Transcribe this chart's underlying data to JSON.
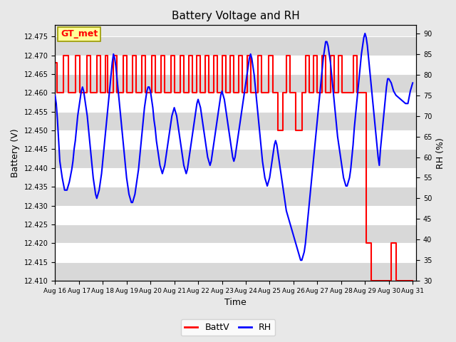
{
  "title": "Battery Voltage and RH",
  "xlabel": "Time",
  "ylabel_left": "Battery (V)",
  "ylabel_right": "RH (%)",
  "annotation": "GT_met",
  "ylim_left": [
    12.41,
    12.478
  ],
  "ylim_right": [
    30,
    92
  ],
  "yticks_left": [
    12.41,
    12.415,
    12.42,
    12.425,
    12.43,
    12.435,
    12.44,
    12.445,
    12.45,
    12.455,
    12.46,
    12.465,
    12.47,
    12.475
  ],
  "yticks_right": [
    30,
    35,
    40,
    45,
    50,
    55,
    60,
    65,
    70,
    75,
    80,
    85,
    90
  ],
  "bg_color": "#e8e8e8",
  "fig_color": "#e8e8e8",
  "batt_color": "red",
  "rh_color": "blue",
  "annotation_bg": "#ffff99",
  "annotation_border": "#999900",
  "batt_data": [
    [
      16.0,
      12.468
    ],
    [
      16.08,
      12.468
    ],
    [
      16.08,
      12.46
    ],
    [
      16.35,
      12.46
    ],
    [
      16.35,
      12.47
    ],
    [
      16.55,
      12.47
    ],
    [
      16.55,
      12.46
    ],
    [
      16.85,
      12.46
    ],
    [
      16.85,
      12.47
    ],
    [
      17.05,
      12.47
    ],
    [
      17.05,
      12.46
    ],
    [
      17.35,
      12.46
    ],
    [
      17.35,
      12.47
    ],
    [
      17.5,
      12.47
    ],
    [
      17.5,
      12.46
    ],
    [
      17.75,
      12.46
    ],
    [
      17.75,
      12.47
    ],
    [
      17.9,
      12.47
    ],
    [
      17.9,
      12.46
    ],
    [
      18.1,
      12.46
    ],
    [
      18.1,
      12.47
    ],
    [
      18.2,
      12.47
    ],
    [
      18.2,
      12.46
    ],
    [
      18.45,
      12.46
    ],
    [
      18.45,
      12.47
    ],
    [
      18.6,
      12.47
    ],
    [
      18.6,
      12.46
    ],
    [
      18.85,
      12.46
    ],
    [
      18.85,
      12.47
    ],
    [
      19.0,
      12.47
    ],
    [
      19.0,
      12.46
    ],
    [
      19.25,
      12.46
    ],
    [
      19.25,
      12.47
    ],
    [
      19.4,
      12.47
    ],
    [
      19.4,
      12.46
    ],
    [
      19.65,
      12.46
    ],
    [
      19.65,
      12.47
    ],
    [
      19.8,
      12.47
    ],
    [
      19.8,
      12.46
    ],
    [
      20.05,
      12.46
    ],
    [
      20.05,
      12.47
    ],
    [
      20.2,
      12.47
    ],
    [
      20.2,
      12.46
    ],
    [
      20.45,
      12.46
    ],
    [
      20.45,
      12.47
    ],
    [
      20.6,
      12.47
    ],
    [
      20.6,
      12.46
    ],
    [
      20.85,
      12.46
    ],
    [
      20.85,
      12.47
    ],
    [
      21.0,
      12.47
    ],
    [
      21.0,
      12.46
    ],
    [
      21.25,
      12.46
    ],
    [
      21.25,
      12.47
    ],
    [
      21.4,
      12.47
    ],
    [
      21.4,
      12.46
    ],
    [
      21.6,
      12.46
    ],
    [
      21.6,
      12.47
    ],
    [
      21.75,
      12.47
    ],
    [
      21.75,
      12.46
    ],
    [
      21.95,
      12.46
    ],
    [
      21.95,
      12.47
    ],
    [
      22.1,
      12.47
    ],
    [
      22.1,
      12.46
    ],
    [
      22.3,
      12.46
    ],
    [
      22.3,
      12.47
    ],
    [
      22.45,
      12.47
    ],
    [
      22.45,
      12.46
    ],
    [
      22.65,
      12.46
    ],
    [
      22.65,
      12.47
    ],
    [
      22.8,
      12.47
    ],
    [
      22.8,
      12.46
    ],
    [
      23.0,
      12.46
    ],
    [
      23.0,
      12.47
    ],
    [
      23.15,
      12.47
    ],
    [
      23.15,
      12.46
    ],
    [
      23.35,
      12.46
    ],
    [
      23.35,
      12.47
    ],
    [
      23.5,
      12.47
    ],
    [
      23.5,
      12.46
    ],
    [
      23.7,
      12.46
    ],
    [
      23.7,
      12.47
    ],
    [
      23.85,
      12.47
    ],
    [
      23.85,
      12.46
    ],
    [
      24.05,
      12.46
    ],
    [
      24.05,
      12.47
    ],
    [
      24.2,
      12.47
    ],
    [
      24.2,
      12.46
    ],
    [
      24.5,
      12.46
    ],
    [
      24.5,
      12.47
    ],
    [
      24.65,
      12.47
    ],
    [
      24.65,
      12.46
    ],
    [
      24.95,
      12.46
    ],
    [
      24.95,
      12.47
    ],
    [
      25.15,
      12.47
    ],
    [
      25.15,
      12.46
    ],
    [
      25.35,
      12.46
    ],
    [
      25.35,
      12.45
    ],
    [
      25.55,
      12.45
    ],
    [
      25.55,
      12.46
    ],
    [
      25.7,
      12.46
    ],
    [
      25.7,
      12.47
    ],
    [
      25.85,
      12.47
    ],
    [
      25.85,
      12.46
    ],
    [
      26.1,
      12.46
    ],
    [
      26.1,
      12.45
    ],
    [
      26.35,
      12.45
    ],
    [
      26.35,
      12.46
    ],
    [
      26.5,
      12.46
    ],
    [
      26.5,
      12.47
    ],
    [
      26.65,
      12.47
    ],
    [
      26.65,
      12.46
    ],
    [
      26.85,
      12.46
    ],
    [
      26.85,
      12.47
    ],
    [
      27.0,
      12.47
    ],
    [
      27.0,
      12.46
    ],
    [
      27.2,
      12.46
    ],
    [
      27.2,
      12.47
    ],
    [
      27.35,
      12.47
    ],
    [
      27.35,
      12.46
    ],
    [
      27.55,
      12.46
    ],
    [
      27.55,
      12.47
    ],
    [
      27.7,
      12.47
    ],
    [
      27.7,
      12.46
    ],
    [
      27.9,
      12.46
    ],
    [
      27.9,
      12.47
    ],
    [
      28.05,
      12.47
    ],
    [
      28.05,
      12.46
    ],
    [
      28.25,
      12.46
    ],
    [
      28.25,
      12.46
    ],
    [
      28.5,
      12.46
    ],
    [
      28.5,
      12.47
    ],
    [
      28.65,
      12.47
    ],
    [
      28.65,
      12.46
    ],
    [
      28.8,
      12.46
    ],
    [
      28.8,
      12.46
    ],
    [
      29.0,
      12.46
    ],
    [
      29.0,
      12.46
    ],
    [
      29.05,
      12.46
    ],
    [
      29.05,
      12.42
    ],
    [
      29.25,
      12.42
    ],
    [
      29.25,
      12.41
    ],
    [
      30.1,
      12.41
    ],
    [
      30.1,
      12.42
    ],
    [
      30.3,
      12.42
    ],
    [
      30.3,
      12.41
    ],
    [
      31.0,
      12.41
    ]
  ],
  "rh_data": [
    [
      16.0,
      75
    ],
    [
      16.05,
      73
    ],
    [
      16.1,
      69
    ],
    [
      16.15,
      64
    ],
    [
      16.2,
      59
    ],
    [
      16.3,
      55
    ],
    [
      16.4,
      52
    ],
    [
      16.5,
      52
    ],
    [
      16.6,
      54
    ],
    [
      16.7,
      57
    ],
    [
      16.75,
      59
    ],
    [
      16.8,
      62
    ],
    [
      16.85,
      64
    ],
    [
      16.9,
      67
    ],
    [
      16.95,
      70
    ],
    [
      17.0,
      72
    ],
    [
      17.05,
      74
    ],
    [
      17.1,
      76
    ],
    [
      17.15,
      77
    ],
    [
      17.2,
      76
    ],
    [
      17.25,
      74
    ],
    [
      17.3,
      72
    ],
    [
      17.35,
      70
    ],
    [
      17.4,
      67
    ],
    [
      17.45,
      64
    ],
    [
      17.5,
      61
    ],
    [
      17.55,
      58
    ],
    [
      17.6,
      55
    ],
    [
      17.65,
      53
    ],
    [
      17.7,
      51
    ],
    [
      17.75,
      50
    ],
    [
      17.8,
      51
    ],
    [
      17.85,
      52
    ],
    [
      17.9,
      54
    ],
    [
      17.95,
      56
    ],
    [
      18.0,
      59
    ],
    [
      18.05,
      62
    ],
    [
      18.1,
      65
    ],
    [
      18.15,
      68
    ],
    [
      18.2,
      71
    ],
    [
      18.25,
      74
    ],
    [
      18.3,
      77
    ],
    [
      18.35,
      80
    ],
    [
      18.4,
      83
    ],
    [
      18.45,
      85
    ],
    [
      18.5,
      84
    ],
    [
      18.55,
      82
    ],
    [
      18.6,
      79
    ],
    [
      18.65,
      76
    ],
    [
      18.7,
      73
    ],
    [
      18.75,
      70
    ],
    [
      18.8,
      67
    ],
    [
      18.85,
      64
    ],
    [
      18.9,
      61
    ],
    [
      18.95,
      58
    ],
    [
      19.0,
      55
    ],
    [
      19.05,
      53
    ],
    [
      19.1,
      51
    ],
    [
      19.15,
      50
    ],
    [
      19.2,
      49
    ],
    [
      19.25,
      49
    ],
    [
      19.3,
      50
    ],
    [
      19.35,
      51
    ],
    [
      19.4,
      53
    ],
    [
      19.45,
      55
    ],
    [
      19.5,
      57
    ],
    [
      19.55,
      60
    ],
    [
      19.6,
      63
    ],
    [
      19.65,
      66
    ],
    [
      19.7,
      69
    ],
    [
      19.75,
      72
    ],
    [
      19.8,
      74
    ],
    [
      19.85,
      76
    ],
    [
      19.9,
      77
    ],
    [
      19.95,
      77
    ],
    [
      20.0,
      76
    ],
    [
      20.05,
      74
    ],
    [
      20.1,
      72
    ],
    [
      20.15,
      69
    ],
    [
      20.2,
      67
    ],
    [
      20.25,
      64
    ],
    [
      20.3,
      62
    ],
    [
      20.35,
      60
    ],
    [
      20.4,
      58
    ],
    [
      20.45,
      57
    ],
    [
      20.5,
      56
    ],
    [
      20.55,
      57
    ],
    [
      20.6,
      58
    ],
    [
      20.65,
      60
    ],
    [
      20.7,
      62
    ],
    [
      20.75,
      64
    ],
    [
      20.8,
      66
    ],
    [
      20.85,
      68
    ],
    [
      20.9,
      70
    ],
    [
      20.95,
      71
    ],
    [
      21.0,
      72
    ],
    [
      21.05,
      71
    ],
    [
      21.1,
      70
    ],
    [
      21.15,
      68
    ],
    [
      21.2,
      66
    ],
    [
      21.25,
      64
    ],
    [
      21.3,
      62
    ],
    [
      21.35,
      60
    ],
    [
      21.4,
      58
    ],
    [
      21.45,
      57
    ],
    [
      21.5,
      56
    ],
    [
      21.55,
      57
    ],
    [
      21.6,
      59
    ],
    [
      21.65,
      61
    ],
    [
      21.7,
      63
    ],
    [
      21.75,
      65
    ],
    [
      21.8,
      67
    ],
    [
      21.85,
      69
    ],
    [
      21.9,
      71
    ],
    [
      21.95,
      73
    ],
    [
      22.0,
      74
    ],
    [
      22.05,
      73
    ],
    [
      22.1,
      72
    ],
    [
      22.15,
      70
    ],
    [
      22.2,
      68
    ],
    [
      22.25,
      66
    ],
    [
      22.3,
      64
    ],
    [
      22.35,
      62
    ],
    [
      22.4,
      60
    ],
    [
      22.45,
      59
    ],
    [
      22.5,
      58
    ],
    [
      22.55,
      59
    ],
    [
      22.6,
      61
    ],
    [
      22.65,
      63
    ],
    [
      22.7,
      65
    ],
    [
      22.75,
      67
    ],
    [
      22.8,
      69
    ],
    [
      22.85,
      71
    ],
    [
      22.9,
      73
    ],
    [
      22.95,
      75
    ],
    [
      23.0,
      76
    ],
    [
      23.05,
      75
    ],
    [
      23.1,
      74
    ],
    [
      23.15,
      72
    ],
    [
      23.2,
      70
    ],
    [
      23.25,
      68
    ],
    [
      23.3,
      66
    ],
    [
      23.35,
      64
    ],
    [
      23.4,
      62
    ],
    [
      23.45,
      60
    ],
    [
      23.5,
      59
    ],
    [
      23.55,
      60
    ],
    [
      23.6,
      62
    ],
    [
      23.65,
      64
    ],
    [
      23.7,
      66
    ],
    [
      23.75,
      68
    ],
    [
      23.8,
      70
    ],
    [
      23.85,
      72
    ],
    [
      23.9,
      74
    ],
    [
      23.95,
      76
    ],
    [
      24.0,
      78
    ],
    [
      24.05,
      80
    ],
    [
      24.1,
      82
    ],
    [
      24.15,
      84
    ],
    [
      24.2,
      85
    ],
    [
      24.25,
      84
    ],
    [
      24.3,
      82
    ],
    [
      24.35,
      80
    ],
    [
      24.4,
      77
    ],
    [
      24.45,
      74
    ],
    [
      24.5,
      71
    ],
    [
      24.55,
      68
    ],
    [
      24.6,
      65
    ],
    [
      24.65,
      62
    ],
    [
      24.7,
      59
    ],
    [
      24.75,
      57
    ],
    [
      24.8,
      55
    ],
    [
      24.85,
      54
    ],
    [
      24.9,
      53
    ],
    [
      24.95,
      54
    ],
    [
      25.0,
      55
    ],
    [
      25.05,
      57
    ],
    [
      25.1,
      59
    ],
    [
      25.15,
      61
    ],
    [
      25.2,
      63
    ],
    [
      25.25,
      64
    ],
    [
      25.3,
      63
    ],
    [
      25.35,
      61
    ],
    [
      25.4,
      59
    ],
    [
      25.45,
      57
    ],
    [
      25.5,
      55
    ],
    [
      25.55,
      53
    ],
    [
      25.6,
      51
    ],
    [
      25.65,
      49
    ],
    [
      25.7,
      47
    ],
    [
      25.75,
      46
    ],
    [
      25.8,
      45
    ],
    [
      25.85,
      44
    ],
    [
      25.9,
      43
    ],
    [
      25.95,
      42
    ],
    [
      26.0,
      41
    ],
    [
      26.05,
      40
    ],
    [
      26.1,
      39
    ],
    [
      26.15,
      38
    ],
    [
      26.2,
      37
    ],
    [
      26.25,
      36
    ],
    [
      26.3,
      35
    ],
    [
      26.35,
      35
    ],
    [
      26.4,
      36
    ],
    [
      26.45,
      37
    ],
    [
      26.5,
      39
    ],
    [
      26.55,
      42
    ],
    [
      26.6,
      45
    ],
    [
      26.65,
      48
    ],
    [
      26.7,
      51
    ],
    [
      26.75,
      54
    ],
    [
      26.8,
      57
    ],
    [
      26.85,
      60
    ],
    [
      26.9,
      63
    ],
    [
      26.95,
      66
    ],
    [
      27.0,
      69
    ],
    [
      27.05,
      72
    ],
    [
      27.1,
      75
    ],
    [
      27.15,
      78
    ],
    [
      27.2,
      81
    ],
    [
      27.25,
      84
    ],
    [
      27.3,
      86
    ],
    [
      27.35,
      88
    ],
    [
      27.4,
      88
    ],
    [
      27.45,
      87
    ],
    [
      27.5,
      85
    ],
    [
      27.55,
      83
    ],
    [
      27.6,
      80
    ],
    [
      27.65,
      77
    ],
    [
      27.7,
      74
    ],
    [
      27.75,
      71
    ],
    [
      27.8,
      68
    ],
    [
      27.85,
      65
    ],
    [
      27.9,
      63
    ],
    [
      27.95,
      61
    ],
    [
      28.0,
      59
    ],
    [
      28.05,
      57
    ],
    [
      28.1,
      55
    ],
    [
      28.15,
      54
    ],
    [
      28.2,
      53
    ],
    [
      28.25,
      53
    ],
    [
      28.3,
      54
    ],
    [
      28.35,
      55
    ],
    [
      28.4,
      57
    ],
    [
      28.45,
      60
    ],
    [
      28.5,
      63
    ],
    [
      28.55,
      67
    ],
    [
      28.6,
      70
    ],
    [
      28.65,
      73
    ],
    [
      28.7,
      76
    ],
    [
      28.75,
      79
    ],
    [
      28.8,
      82
    ],
    [
      28.85,
      85
    ],
    [
      28.9,
      87
    ],
    [
      28.95,
      89
    ],
    [
      29.0,
      90
    ],
    [
      29.05,
      89
    ],
    [
      29.1,
      87
    ],
    [
      29.15,
      84
    ],
    [
      29.2,
      81
    ],
    [
      29.25,
      78
    ],
    [
      29.3,
      75
    ],
    [
      29.35,
      72
    ],
    [
      29.4,
      69
    ],
    [
      29.45,
      66
    ],
    [
      29.5,
      63
    ],
    [
      29.55,
      60
    ],
    [
      29.6,
      58
    ],
    [
      29.65,
      62
    ],
    [
      29.7,
      65
    ],
    [
      29.75,
      68
    ],
    [
      29.8,
      71
    ],
    [
      29.85,
      74
    ],
    [
      29.9,
      77
    ],
    [
      29.95,
      79
    ],
    [
      30.0,
      79
    ],
    [
      30.1,
      78
    ],
    [
      30.2,
      76
    ],
    [
      30.3,
      75
    ],
    [
      30.5,
      74
    ],
    [
      30.7,
      73
    ],
    [
      30.8,
      73
    ],
    [
      30.9,
      76
    ],
    [
      31.0,
      78
    ]
  ]
}
